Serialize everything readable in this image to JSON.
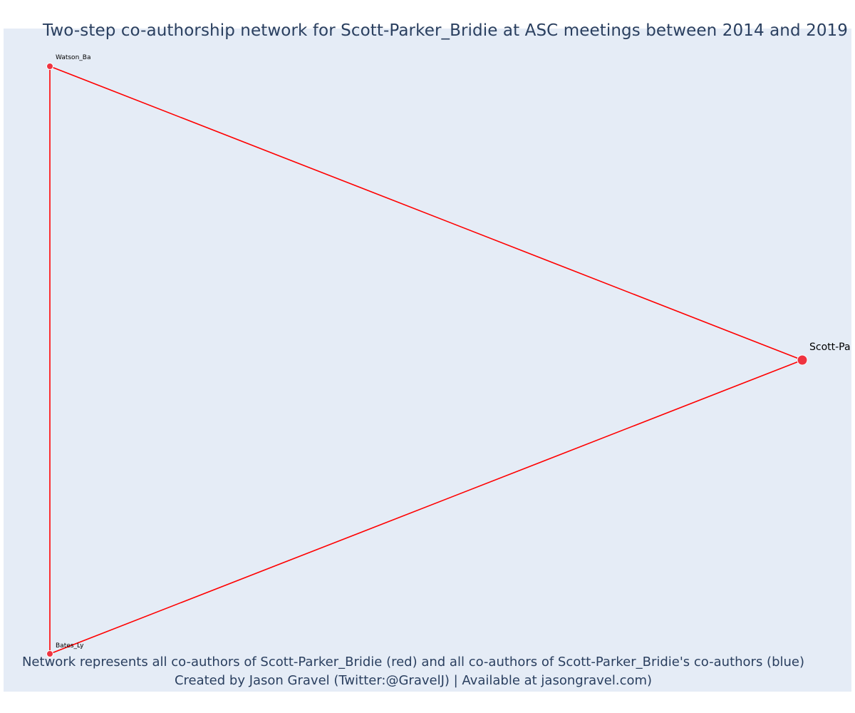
{
  "title": "Two-step co-authorship network for Scott-Parker_Bridie at ASC meetings between 2014 and 2019",
  "footer": {
    "line1": "Network represents all co-authors of Scott-Parker_Bridie (red) and all co-authors of Scott-Parker_Bridie's co-authors (blue)",
    "line2": "Created by Jason Gravel (Twitter:@GravelJ) | Available at jasongravel.com)"
  },
  "colors": {
    "background": "#e5ecf6",
    "edge": "#ff0000",
    "node": "#ef3340",
    "node_outline": "#ffffff",
    "title": "#2a3f5f"
  },
  "chart_data": {
    "type": "network",
    "nodes": [
      {
        "id": "Watson_Ba",
        "label": "Watson_Ba",
        "group": "co-author",
        "color": "red"
      },
      {
        "id": "Scott-Pa",
        "label": "Scott-Pa",
        "group": "focal",
        "color": "red"
      },
      {
        "id": "Bates_Ly",
        "label": "Bates_Ly",
        "group": "co-author",
        "color": "red"
      }
    ],
    "edges": [
      {
        "source": "Watson_Ba",
        "target": "Scott-Pa"
      },
      {
        "source": "Scott-Pa",
        "target": "Bates_Ly"
      },
      {
        "source": "Watson_Ba",
        "target": "Bates_Ly"
      }
    ]
  }
}
